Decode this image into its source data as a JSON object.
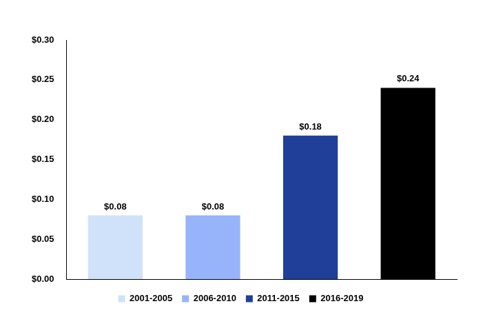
{
  "chart_data": {
    "type": "bar",
    "categories": [
      "2001-2005",
      "2006-2010",
      "2011-2015",
      "2016-2019"
    ],
    "values": [
      0.08,
      0.08,
      0.18,
      0.24
    ],
    "value_labels": [
      "$0.08",
      "$0.08",
      "$0.18",
      "$0.24"
    ],
    "colors": [
      "#cfe2fa",
      "#97b4fb",
      "#1f3f99",
      "#000000"
    ],
    "ylim": [
      0,
      0.3
    ],
    "yticks": [
      {
        "value": 0,
        "label": "$0.00"
      },
      {
        "value": 0.05,
        "label": "$0.05"
      },
      {
        "value": 0.1,
        "label": "$0.10"
      },
      {
        "value": 0.15,
        "label": "$0.15"
      },
      {
        "value": 0.2,
        "label": "$0.20"
      },
      {
        "value": 0.25,
        "label": "$0.25"
      },
      {
        "value": 0.3,
        "label": "$0.30"
      }
    ],
    "grid": false,
    "legend": "bottom",
    "data_labels": true,
    "tick_labels": "y"
  }
}
